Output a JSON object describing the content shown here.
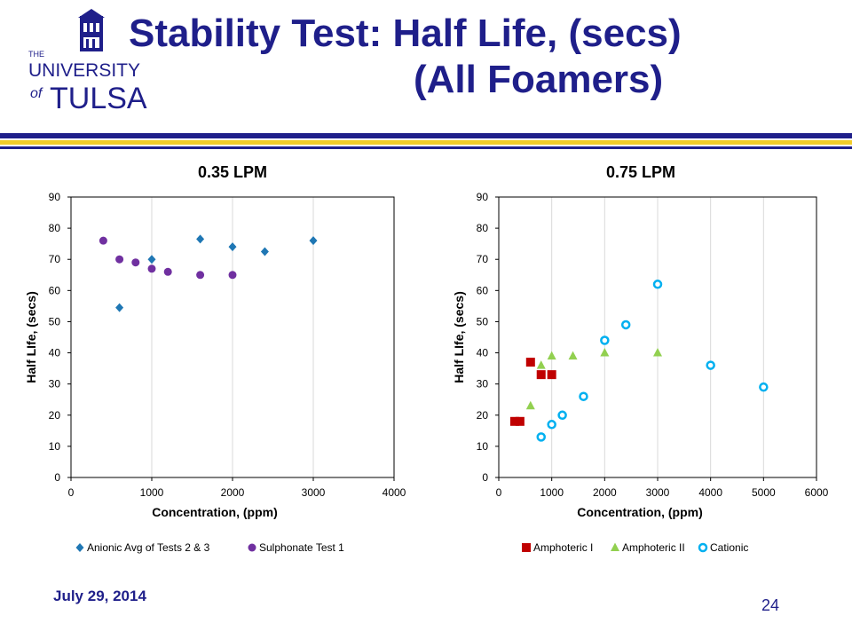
{
  "slide": {
    "title_line1": "Stability Test: Half Life, (secs)",
    "title_line2": "(All Foamers)",
    "date": "July 29, 2014",
    "page_number": "24",
    "title_color": "#1f1f8a",
    "accent_gold": "#f2cc2a"
  },
  "logo": {
    "the": "THE",
    "university": "UNIVERSITY",
    "of": "of",
    "tulsa": "TULSA",
    "icon": "university-tower-icon",
    "color": "#1f1f8a"
  },
  "chart_data": [
    {
      "type": "scatter",
      "title": "0.35 LPM",
      "xlabel": "Concentration, (ppm)",
      "ylabel": "Half LIfe, (secs)",
      "xlim": [
        0,
        4000
      ],
      "ylim": [
        0,
        90
      ],
      "xticks": [
        0,
        1000,
        2000,
        3000,
        4000
      ],
      "yticks": [
        0,
        10,
        20,
        30,
        40,
        50,
        60,
        70,
        80,
        90
      ],
      "grid": "vertical",
      "legend_position": "bottom",
      "series": [
        {
          "name": "Anionic Avg of Tests 2 & 3",
          "marker": "diamond",
          "color": "#1f77b4",
          "points": [
            [
              600,
              54.5
            ],
            [
              1000,
              70
            ],
            [
              1600,
              76.5
            ],
            [
              2000,
              74
            ],
            [
              2400,
              72.5
            ],
            [
              3000,
              76
            ]
          ]
        },
        {
          "name": "Sulphonate Test 1",
          "marker": "circle",
          "color": "#7030a0",
          "points": [
            [
              400,
              76
            ],
            [
              600,
              70
            ],
            [
              800,
              69
            ],
            [
              1000,
              67
            ],
            [
              1200,
              66
            ],
            [
              1600,
              65
            ],
            [
              2000,
              65
            ]
          ]
        }
      ]
    },
    {
      "type": "scatter",
      "title": "0.75 LPM",
      "xlabel": "Concentration, (ppm)",
      "ylabel": "Half LIfe, (secs)",
      "xlim": [
        0,
        6000
      ],
      "ylim": [
        0,
        90
      ],
      "xticks": [
        0,
        1000,
        2000,
        3000,
        4000,
        5000,
        6000
      ],
      "yticks": [
        0,
        10,
        20,
        30,
        40,
        50,
        60,
        70,
        80,
        90
      ],
      "grid": "vertical",
      "legend_position": "bottom",
      "series": [
        {
          "name": "Amphoteric I",
          "marker": "square",
          "color": "#c00000",
          "points": [
            [
              300,
              18
            ],
            [
              400,
              18
            ],
            [
              600,
              37
            ],
            [
              800,
              33
            ],
            [
              1000,
              33
            ]
          ]
        },
        {
          "name": "Amphoteric II",
          "marker": "triangle",
          "color": "#92d050",
          "points": [
            [
              600,
              23
            ],
            [
              800,
              36
            ],
            [
              1000,
              39
            ],
            [
              1400,
              39
            ],
            [
              2000,
              40
            ],
            [
              3000,
              40
            ]
          ]
        },
        {
          "name": "Cationic",
          "marker": "open-circle",
          "color": "#00b0f0",
          "points": [
            [
              800,
              13
            ],
            [
              1000,
              17
            ],
            [
              1200,
              20
            ],
            [
              1600,
              26
            ],
            [
              2000,
              44
            ],
            [
              2400,
              49
            ],
            [
              3000,
              62
            ],
            [
              4000,
              36
            ],
            [
              5000,
              29
            ]
          ]
        }
      ]
    }
  ]
}
